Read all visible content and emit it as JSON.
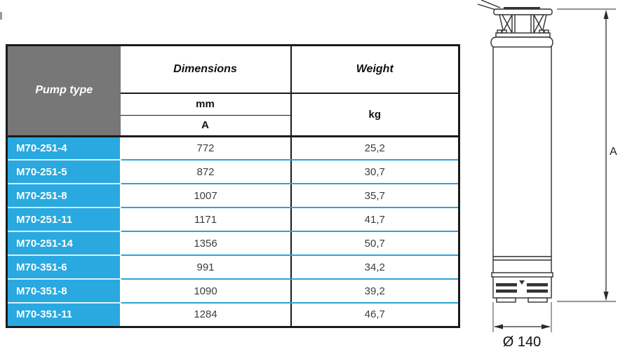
{
  "table": {
    "header": {
      "pump_type": "Pump type",
      "dimensions": "Dimensions",
      "weight": "Weight",
      "unit_mm": "mm",
      "dim_symbol": "A",
      "unit_kg": "kg"
    },
    "rows": [
      {
        "type": "M70-251-4",
        "a_mm": "772",
        "weight_kg": "25,2",
        "group": 1
      },
      {
        "type": "M70-251-5",
        "a_mm": "872",
        "weight_kg": "30,7",
        "group": 1
      },
      {
        "type": "M70-251-8",
        "a_mm": "1007",
        "weight_kg": "35,7",
        "group": 1
      },
      {
        "type": "M70-251-11",
        "a_mm": "1171",
        "weight_kg": "41,7",
        "group": 1
      },
      {
        "type": "M70-251-14",
        "a_mm": "1356",
        "weight_kg": "50,7",
        "group": 1
      },
      {
        "type": "M70-351-6",
        "a_mm": "991",
        "weight_kg": "34,2",
        "group": 2
      },
      {
        "type": "M70-351-8",
        "a_mm": "1090",
        "weight_kg": "39,2",
        "group": 2
      },
      {
        "type": "M70-351-11",
        "a_mm": "1284",
        "weight_kg": "46,7",
        "group": 2
      }
    ]
  },
  "drawing": {
    "height_dim_label": "A",
    "diameter_dim_label": "Ø 140"
  },
  "colors": {
    "header_gray": "#777777",
    "row_blue": "#29A9E0",
    "separator_cyan": "#2BA5D4",
    "separator_pale": "#D8F1FB",
    "table_border": "#1b1b1b",
    "dimension_line_gray": "#9a9a9a"
  }
}
